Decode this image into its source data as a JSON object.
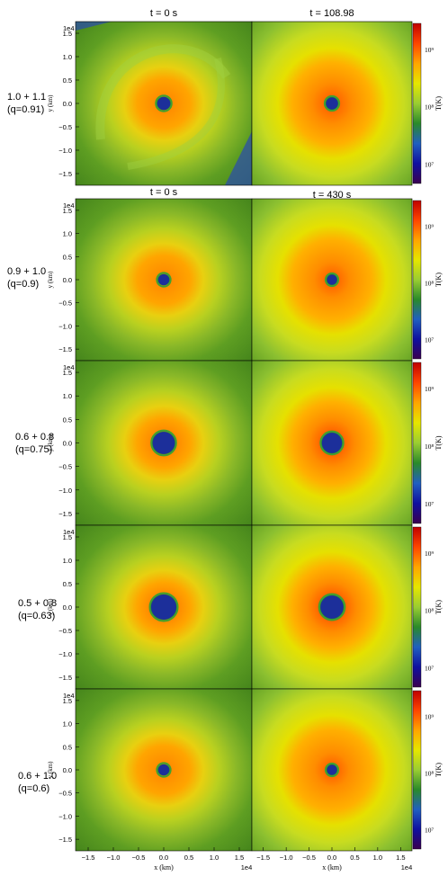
{
  "chart_data": {
    "type": "heatmap",
    "description_units": "temperature maps T(K) in x-y plane, colorbar log scale",
    "column_titles_top": [
      "t = 0 s",
      "t = 108.98"
    ],
    "column_titles_second": [
      "t = 0 s",
      "t = 430 s"
    ],
    "rows": [
      {
        "label_line1": "1.0 + 1.1",
        "label_line2": "(q=0.91)",
        "hot_level": 0.85,
        "core_radius_1e4km": 0.13,
        "spiral": true
      },
      {
        "label_line1": "0.9 + 1.0",
        "label_line2": "(q=0.9)",
        "hot_level": 0.78,
        "core_radius_1e4km": 0.11,
        "spiral": false
      },
      {
        "label_line1": "0.6 + 0.8",
        "label_line2": "(q=0.75)",
        "hot_level": 0.7,
        "core_radius_1e4km": 0.22,
        "spiral": false
      },
      {
        "label_line1": "0.5 + 0.8",
        "label_line2": "(q=0.63)",
        "hot_level": 0.68,
        "core_radius_1e4km": 0.25,
        "spiral": false
      },
      {
        "label_line1": "0.6 + 1.0",
        "label_line2": "(q=0.6)",
        "hot_level": 0.74,
        "core_radius_1e4km": 0.11,
        "spiral": false
      }
    ],
    "x_axis": {
      "label": "x  (km)",
      "ticks": [
        "−1.5",
        "−1.0",
        "−0.5",
        "0.0",
        "0.5",
        "1.0",
        "1.5"
      ],
      "multiplier": "1e4",
      "range": [
        -1.75,
        1.75
      ]
    },
    "y_axis": {
      "label": "y  (km)",
      "ticks": [
        "1.5",
        "1.0",
        "0.5",
        "0.0",
        "−0.5",
        "−1.0",
        "−1.5"
      ],
      "multiplier": "1e4",
      "range": [
        -1.75,
        1.75
      ]
    },
    "colorbar": {
      "label": "T(K)",
      "ticks": [
        "10⁹",
        "10⁸",
        "10⁷"
      ],
      "scale": "log",
      "colors": [
        "#3a0050",
        "#1010a0",
        "#2060c0",
        "#2a8a2a",
        "#9acd32",
        "#e6e600",
        "#ffa500",
        "#ff4500",
        "#c00000"
      ]
    }
  }
}
